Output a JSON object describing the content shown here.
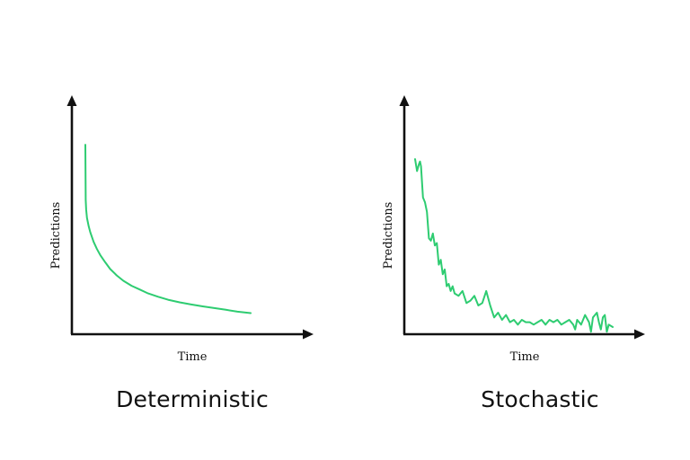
{
  "chart_data": [
    {
      "type": "line",
      "title": "Deterministic",
      "xlabel": "Time",
      "ylabel": "Predictions",
      "x": [
        0,
        0.2,
        0.5,
        1,
        2,
        3,
        5,
        7,
        9,
        12,
        15,
        19,
        23,
        28,
        33,
        38,
        44,
        50,
        57,
        64,
        71,
        78,
        85,
        92,
        100
      ],
      "series": [
        {
          "name": "Deterministic",
          "values": [
            79,
            56,
            52,
            48.5,
            45,
            42.5,
            38.5,
            35.5,
            33,
            30,
            27.2,
            24.5,
            22.3,
            20.2,
            18.6,
            17,
            15.6,
            14.4,
            13.3,
            12.4,
            11.6,
            10.9,
            10.2,
            9.4,
            8.8
          ]
        }
      ],
      "xlim": [
        0,
        100
      ],
      "ylim": [
        0,
        100
      ],
      "grid": false,
      "tick_labels": false,
      "color": "#2ecc71"
    },
    {
      "type": "line",
      "title": "Stochastic",
      "xlabel": "Time",
      "ylabel": "Predictions",
      "x": [
        0,
        1,
        2,
        2.5,
        3,
        4,
        5,
        6,
        7,
        8,
        9,
        10,
        11,
        12,
        13,
        14,
        15,
        16,
        17,
        18,
        19,
        20,
        22,
        24,
        26,
        28,
        30,
        32,
        34,
        36,
        38,
        40,
        42,
        44,
        46,
        48,
        50,
        52,
        54,
        56,
        58,
        60,
        62,
        64,
        66,
        68,
        70,
        72,
        74,
        76,
        78,
        80,
        81,
        82,
        84,
        86,
        88,
        89,
        90,
        92,
        93,
        94,
        95,
        96,
        97,
        98,
        100
      ],
      "series": [
        {
          "name": "Stochastic",
          "values": [
            73,
            68,
            71,
            72,
            70,
            57,
            55,
            51,
            40,
            39,
            42,
            37,
            38,
            29,
            31,
            25,
            27,
            20,
            21,
            18,
            20,
            17,
            16,
            18,
            13,
            14,
            16,
            12,
            13,
            18,
            12,
            7,
            9,
            6,
            8,
            5,
            6,
            4,
            6,
            5,
            5,
            4,
            5,
            6,
            4,
            6,
            5,
            6,
            4,
            5,
            6,
            4,
            2,
            6,
            4,
            8,
            5,
            1,
            7,
            9,
            5,
            2,
            7,
            8,
            1,
            4,
            3
          ]
        }
      ],
      "xlim": [
        0,
        100
      ],
      "ylim": [
        0,
        100
      ],
      "grid": false,
      "tick_labels": false,
      "color": "#2ecc71"
    }
  ]
}
